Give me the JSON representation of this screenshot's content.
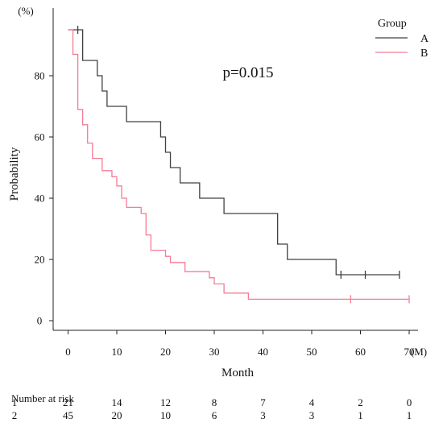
{
  "chart_data": {
    "type": "line",
    "subtype": "kaplan-meier",
    "xlabel": "Month",
    "ylabel": "Probability",
    "x_unit": "(M)",
    "y_unit": "(%)",
    "xlim": [
      -3,
      70
    ],
    "ylim": [
      -3,
      100
    ],
    "xticks": [
      0,
      10,
      20,
      30,
      40,
      50,
      60,
      70
    ],
    "yticks": [
      0,
      20,
      40,
      60,
      80
    ],
    "annotation": "p=0.015",
    "legend": {
      "title": "Group",
      "position": "top-right",
      "entries": [
        {
          "label": "A",
          "color": "#404040"
        },
        {
          "label": "B",
          "color": "#f47c94"
        }
      ]
    },
    "series": [
      {
        "name": "A",
        "color": "#404040",
        "steps": [
          [
            0,
            95
          ],
          [
            3,
            85
          ],
          [
            6,
            80
          ],
          [
            7,
            75
          ],
          [
            8,
            70
          ],
          [
            12,
            65
          ],
          [
            19,
            60
          ],
          [
            20,
            55
          ],
          [
            21,
            50
          ],
          [
            23,
            45
          ],
          [
            27,
            40
          ],
          [
            32,
            35
          ],
          [
            43,
            25
          ],
          [
            45,
            20
          ],
          [
            55,
            15
          ],
          [
            68,
            15
          ]
        ],
        "censored": [
          [
            2,
            95
          ],
          [
            56,
            15
          ],
          [
            61,
            15
          ],
          [
            68,
            15
          ]
        ]
      },
      {
        "name": "B",
        "color": "#f47c94",
        "steps": [
          [
            0,
            95
          ],
          [
            1,
            87
          ],
          [
            2,
            69
          ],
          [
            3,
            64
          ],
          [
            4,
            58
          ],
          [
            5,
            53
          ],
          [
            7,
            49
          ],
          [
            9,
            47
          ],
          [
            10,
            44
          ],
          [
            11,
            40
          ],
          [
            12,
            37
          ],
          [
            15,
            35
          ],
          [
            16,
            28
          ],
          [
            17,
            23
          ],
          [
            20,
            21
          ],
          [
            21,
            19
          ],
          [
            24,
            16
          ],
          [
            29,
            14
          ],
          [
            30,
            12
          ],
          [
            32,
            9
          ],
          [
            37,
            7
          ],
          [
            70,
            7
          ]
        ],
        "censored": [
          [
            58,
            7
          ],
          [
            70,
            7
          ]
        ]
      }
    ]
  },
  "risk_table": {
    "title": "Number at risk",
    "rows": [
      {
        "group": "1",
        "values": [
          "21",
          "14",
          "12",
          "8",
          "7",
          "4",
          "2",
          "0"
        ]
      },
      {
        "group": "2",
        "values": [
          "45",
          "20",
          "10",
          "6",
          "3",
          "3",
          "1",
          "1"
        ]
      }
    ]
  }
}
